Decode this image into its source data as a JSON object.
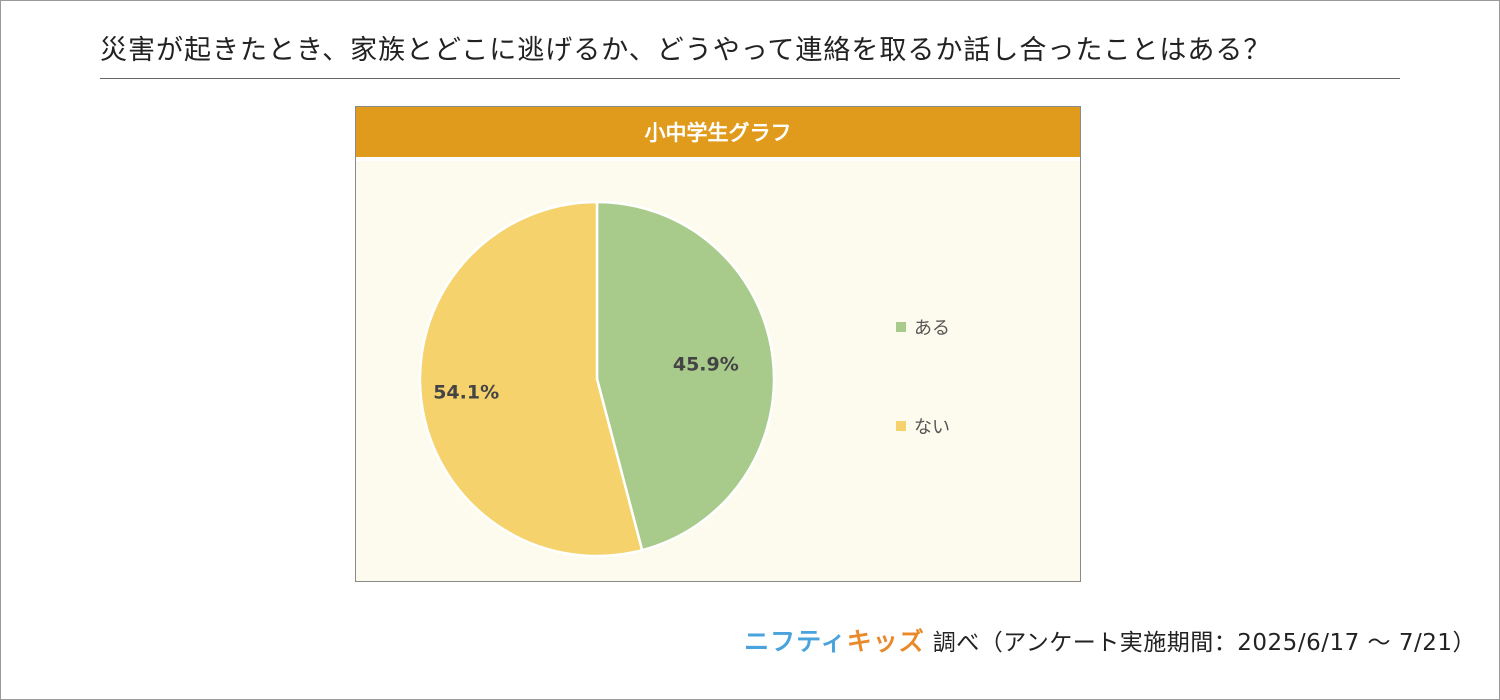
{
  "title": "災害が起きたとき、家族とどこに逃げるか、どうやって連絡を取るか話し合ったことはある？",
  "panel_title": "小中学生グラフ",
  "footer": {
    "brand_part1": "ニフティ",
    "brand_part2": "キッズ",
    "source_text": "調べ（アンケート実施期間：2025/6/17 ～ 7/21）"
  },
  "colors": {
    "header": "#e09b1d",
    "panel_bg": "#fdfbee",
    "aru": "#a8cb8c",
    "nai": "#f5d26b"
  },
  "chart_data": {
    "type": "pie",
    "slices": [
      {
        "label": "ある",
        "value": 45.9,
        "value_label": "45.9%",
        "color": "#a8cb8c"
      },
      {
        "label": "ない",
        "value": 54.1,
        "value_label": "54.1%",
        "color": "#f5d26b"
      }
    ],
    "legend_position": "right"
  }
}
